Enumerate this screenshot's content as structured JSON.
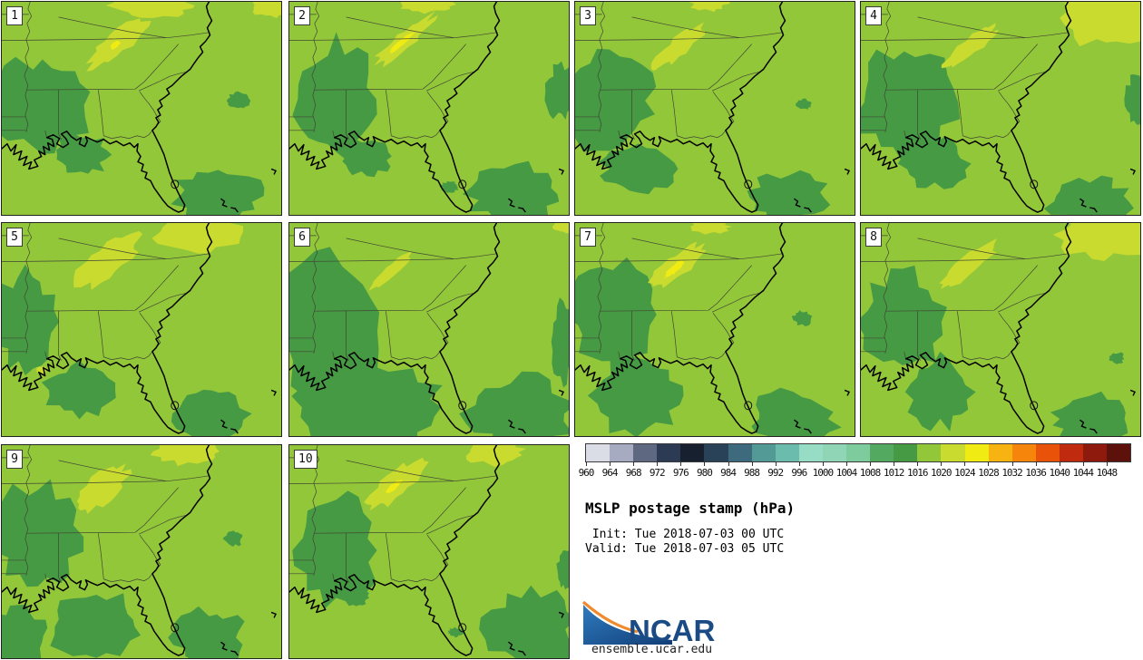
{
  "info": {
    "title": "MSLP postage stamp (hPa)",
    "init_line": " Init: Tue 2018-07-03 00 UTC",
    "valid_line": "Valid: Tue 2018-07-03 05 UTC"
  },
  "branding": {
    "logo_text": "NCAR",
    "site": "ensemble.ucar.edu"
  },
  "map_colors": {
    "base": "#93c73a",
    "low": "#479a44",
    "high": "#c9db2f",
    "core": "#f0ec13",
    "state_line": "#3f4633",
    "coast": "#000000"
  },
  "colorbar": {
    "tick_labels": [
      "960",
      "964",
      "968",
      "972",
      "976",
      "980",
      "984",
      "988",
      "992",
      "996",
      "1000",
      "1004",
      "1008",
      "1012",
      "1016",
      "1020",
      "1024",
      "1028",
      "1032",
      "1036",
      "1040",
      "1044",
      "1048"
    ],
    "colors": [
      "#dadde6",
      "#a7abc1",
      "#5e6880",
      "#2c3a54",
      "#16202f",
      "#2a4257",
      "#3d6a7c",
      "#539a96",
      "#6cbcae",
      "#97dcc5",
      "#8fd5b6",
      "#7ecb9e",
      "#52a95f",
      "#479a44",
      "#93c73a",
      "#c9db2f",
      "#f0ec13",
      "#f6b312",
      "#f6850c",
      "#e85309",
      "#c02b10",
      "#8e1a0e",
      "#5c120b"
    ]
  },
  "chart_data": {
    "type": "heatmap",
    "title": "MSLP postage stamp (hPa)",
    "subtitle_lines": [
      " Init: Tue 2018-07-03 00 UTC",
      "Valid: Tue 2018-07-03 05 UTC"
    ],
    "legend_position": "bottom-right",
    "units": "hPa",
    "colorbar_ticks": [
      960,
      964,
      968,
      972,
      976,
      980,
      984,
      988,
      992,
      996,
      1000,
      1004,
      1008,
      1012,
      1016,
      1020,
      1024,
      1028,
      1032,
      1036,
      1040,
      1044,
      1048
    ],
    "members": [
      1,
      2,
      3,
      4,
      5,
      6,
      7,
      8,
      9,
      10
    ],
    "depicted_values_hpa": {
      "background": "1016-1020",
      "dark_green_lows": "1012-1016",
      "pale_ridge": "1020-1024",
      "yellow_core": "1024-1028"
    }
  },
  "panels": [
    {
      "number": "1",
      "patches": [
        [
          45,
          115,
          50,
          52,
          1
        ],
        [
          88,
          170,
          30,
          22,
          2
        ],
        [
          240,
          216,
          46,
          30,
          3
        ],
        [
          262,
          110,
          12,
          9,
          4
        ]
      ],
      "brights": [
        [
          128,
          46,
          40,
          12,
          -38,
          51
        ],
        [
          168,
          4,
          48,
          13,
          0,
          52
        ],
        [
          298,
          6,
          22,
          11,
          0,
          53
        ]
      ],
      "cores": [
        [
          126,
          48,
          6,
          3,
          -38,
          81
        ]
      ]
    },
    {
      "number": "2",
      "patches": [
        [
          52,
          108,
          44,
          62,
          5
        ],
        [
          86,
          172,
          27,
          20,
          6
        ],
        [
          250,
          214,
          50,
          32,
          7
        ],
        [
          302,
          100,
          16,
          30,
          8
        ],
        [
          178,
          206,
          10,
          6,
          9
        ]
      ],
      "brights": [
        [
          126,
          44,
          42,
          9,
          -40,
          54
        ],
        [
          150,
          3,
          30,
          9,
          0,
          55
        ]
      ],
      "cores": [
        [
          124,
          46,
          18,
          3,
          -40,
          82
        ]
      ]
    },
    {
      "number": "3",
      "patches": [
        [
          38,
          110,
          50,
          56,
          10
        ],
        [
          70,
          186,
          40,
          26,
          11
        ],
        [
          237,
          218,
          42,
          27,
          12
        ],
        [
          254,
          114,
          8,
          6,
          13
        ]
      ],
      "brights": [
        [
          116,
          49,
          34,
          10,
          -40,
          56
        ],
        [
          148,
          2,
          20,
          8,
          0,
          57
        ]
      ],
      "cores": []
    },
    {
      "number": "4",
      "patches": [
        [
          48,
          112,
          54,
          60,
          14
        ],
        [
          82,
          180,
          34,
          26,
          15
        ],
        [
          254,
          222,
          44,
          26,
          16
        ],
        [
          306,
          108,
          12,
          26,
          17
        ]
      ],
      "brights": [
        [
          122,
          50,
          36,
          9,
          -40,
          58
        ],
        [
          272,
          18,
          48,
          30,
          0,
          59
        ]
      ],
      "cores": []
    },
    {
      "number": "5",
      "patches": [
        [
          26,
          110,
          34,
          54,
          18
        ],
        [
          86,
          186,
          36,
          28,
          19
        ],
        [
          233,
          212,
          40,
          30,
          20
        ]
      ],
      "brights": [
        [
          118,
          42,
          42,
          17,
          -38,
          60
        ],
        [
          218,
          10,
          44,
          22,
          0,
          61
        ],
        [
          44,
          163,
          6,
          4,
          0,
          62
        ]
      ],
      "cores": []
    },
    {
      "number": "6",
      "patches": [
        [
          45,
          120,
          58,
          82,
          21
        ],
        [
          90,
          205,
          85,
          45,
          22
        ],
        [
          258,
          212,
          58,
          40,
          23
        ],
        [
          304,
          132,
          13,
          42,
          24
        ]
      ],
      "brights": [
        [
          112,
          54,
          30,
          6,
          -42,
          63
        ],
        [
          306,
          4,
          12,
          7,
          0,
          64
        ]
      ],
      "cores": []
    },
    {
      "number": "7",
      "patches": [
        [
          42,
          102,
          50,
          56,
          25
        ],
        [
          68,
          192,
          50,
          40,
          26
        ],
        [
          242,
          218,
          46,
          30,
          27
        ],
        [
          252,
          106,
          10,
          8,
          28
        ]
      ],
      "brights": [
        [
          112,
          49,
          36,
          12,
          -40,
          65
        ],
        [
          150,
          4,
          20,
          8,
          0,
          66
        ]
      ],
      "cores": [
        [
          110,
          51,
          14,
          4,
          -40,
          83
        ]
      ]
    },
    {
      "number": "8",
      "patches": [
        [
          46,
          110,
          44,
          54,
          29
        ],
        [
          88,
          188,
          35,
          38,
          30
        ],
        [
          254,
          218,
          42,
          27,
          31
        ],
        [
          284,
          150,
          8,
          6,
          32
        ]
      ],
      "brights": [
        [
          120,
          47,
          38,
          10,
          -40,
          67
        ],
        [
          270,
          13,
          50,
          26,
          0,
          68
        ]
      ],
      "cores": []
    },
    {
      "number": "9",
      "patches": [
        [
          40,
          102,
          46,
          56,
          33
        ],
        [
          18,
          212,
          30,
          30,
          34
        ],
        [
          105,
          202,
          50,
          36,
          35
        ],
        [
          230,
          214,
          38,
          30,
          36
        ],
        [
          257,
          104,
          10,
          8,
          37
        ]
      ],
      "brights": [
        [
          110,
          49,
          38,
          15,
          -40,
          69
        ],
        [
          207,
          7,
          38,
          14,
          0,
          70
        ]
      ],
      "cores": []
    },
    {
      "number": "10",
      "patches": [
        [
          52,
          117,
          42,
          58,
          38
        ],
        [
          74,
          170,
          14,
          9,
          39
        ],
        [
          268,
          205,
          48,
          42,
          40
        ],
        [
          306,
          138,
          9,
          22,
          41
        ],
        [
          184,
          208,
          8,
          5,
          42
        ]
      ],
      "brights": [
        [
          118,
          44,
          38,
          13,
          -40,
          71
        ],
        [
          228,
          8,
          32,
          14,
          0,
          72
        ]
      ],
      "cores": [
        [
          116,
          46,
          10,
          3,
          -40,
          84
        ]
      ]
    }
  ]
}
